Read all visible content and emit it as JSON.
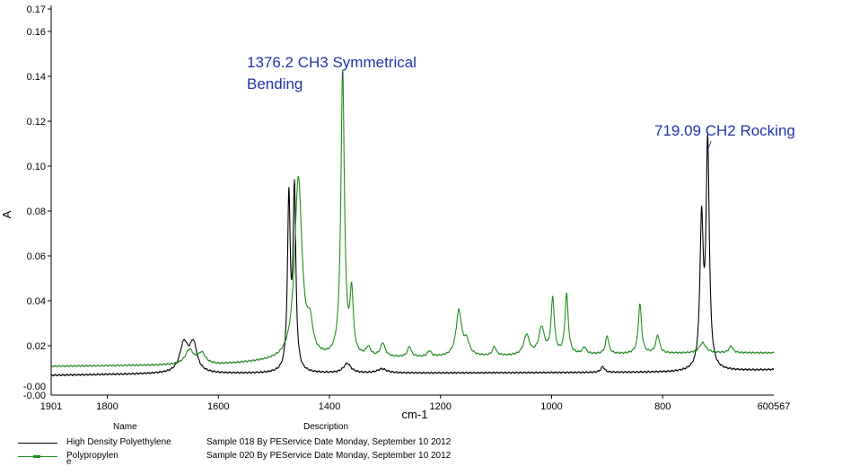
{
  "chart_data": {
    "type": "line",
    "xlabel": "cm-1",
    "ylabel": "A",
    "x_reversed": true,
    "xlim": [
      1901,
      600
    ],
    "ylim": [
      -0.002,
      0.17
    ],
    "x_ticks": [
      1800,
      1600,
      1400,
      1200,
      1000,
      800
    ],
    "x_tick_labels": [
      "1800",
      "1600",
      "1400",
      "1200",
      "1000",
      "800"
    ],
    "x_end_labels": [
      "1901",
      "600567"
    ],
    "y_ticks": [
      0.16,
      0.14,
      0.12,
      0.1,
      0.08,
      0.06,
      0.04,
      0.02
    ],
    "y_tick_labels": [
      "0.16",
      "0.14",
      "0.12",
      "0.10",
      "0.08",
      "0.06",
      "0.04",
      "0.02"
    ],
    "y_top_label": "0.17",
    "y_bottom_labels": [
      "-0.00",
      "-0.00"
    ],
    "grid": false,
    "series": [
      {
        "name": "High Density Polyethylene",
        "description": "Sample 018 By PEService Date Monday, September 10 2012",
        "color": "#000000",
        "peaks": [
          {
            "x": 1662,
            "y": 0.0128,
            "width": 9
          },
          {
            "x": 1645,
            "y": 0.0124,
            "width": 8
          },
          {
            "x": 1473,
            "y": 0.076,
            "width": 3
          },
          {
            "x": 1463,
            "y": 0.08,
            "width": 3
          },
          {
            "x": 1368,
            "y": 0.0042,
            "width": 8
          },
          {
            "x": 1305,
            "y": 0.0018,
            "width": 10
          },
          {
            "x": 908,
            "y": 0.0025,
            "width": 4
          },
          {
            "x": 730,
            "y": 0.0645,
            "width": 3.5
          },
          {
            "x": 719,
            "y": 0.0995,
            "width": 3.5
          }
        ],
        "baseline": [
          [
            1901,
            0.0068
          ],
          [
            1700,
            0.0075
          ],
          [
            1300,
            0.0078
          ],
          [
            1000,
            0.008
          ],
          [
            780,
            0.0082
          ],
          [
            650,
            0.009
          ],
          [
            600,
            0.0093
          ]
        ]
      },
      {
        "name": "Polypropylen",
        "description": "Sample 020 By PEService Date Monday, September 10 2012",
        "color": "#228b22",
        "peaks": [
          {
            "x": 1652,
            "y": 0.0065,
            "width": 9
          },
          {
            "x": 1630,
            "y": 0.0048,
            "width": 8
          },
          {
            "x": 1456,
            "y": 0.081,
            "width": 8
          },
          {
            "x": 1435,
            "y": 0.012,
            "width": 6
          },
          {
            "x": 1376.2,
            "y": 0.127,
            "width": 3.8
          },
          {
            "x": 1360,
            "y": 0.027,
            "width": 3.5
          },
          {
            "x": 1330,
            "y": 0.004,
            "width": 5
          },
          {
            "x": 1304,
            "y": 0.006,
            "width": 5
          },
          {
            "x": 1256,
            "y": 0.0045,
            "width": 4
          },
          {
            "x": 1220,
            "y": 0.0025,
            "width": 4
          },
          {
            "x": 1167,
            "y": 0.02,
            "width": 6
          },
          {
            "x": 1153,
            "y": 0.006,
            "width": 6
          },
          {
            "x": 1103,
            "y": 0.004,
            "width": 4
          },
          {
            "x": 1045,
            "y": 0.009,
            "width": 6
          },
          {
            "x": 1018,
            "y": 0.012,
            "width": 6
          },
          {
            "x": 998,
            "y": 0.0245,
            "width": 3.5
          },
          {
            "x": 973,
            "y": 0.0265,
            "width": 3.5
          },
          {
            "x": 941,
            "y": 0.003,
            "width": 4
          },
          {
            "x": 900,
            "y": 0.008,
            "width": 3.5
          },
          {
            "x": 841,
            "y": 0.022,
            "width": 3.5
          },
          {
            "x": 809,
            "y": 0.008,
            "width": 4
          },
          {
            "x": 728,
            "y": 0.0045,
            "width": 7
          },
          {
            "x": 677,
            "y": 0.003,
            "width": 4
          }
        ],
        "baseline": [
          [
            1901,
            0.0108
          ],
          [
            1600,
            0.0115
          ],
          [
            1500,
            0.013
          ],
          [
            1300,
            0.0145
          ],
          [
            1100,
            0.0152
          ],
          [
            900,
            0.0162
          ],
          [
            700,
            0.0168
          ],
          [
            600,
            0.0168
          ]
        ]
      }
    ],
    "annotations": [
      {
        "text_lines": [
          "1376.2 CH3 Symmetrical",
          "Bending"
        ],
        "x": 1376.2,
        "y": 0.139,
        "color": "#2233aa"
      },
      {
        "text_lines": [
          "719.09 CH2 Rocking"
        ],
        "x": 719.09,
        "y": 0.107,
        "color": "#2233aa"
      }
    ]
  },
  "legend": {
    "name_header": "Name",
    "description_header": "Description",
    "extra_mark": "e"
  }
}
